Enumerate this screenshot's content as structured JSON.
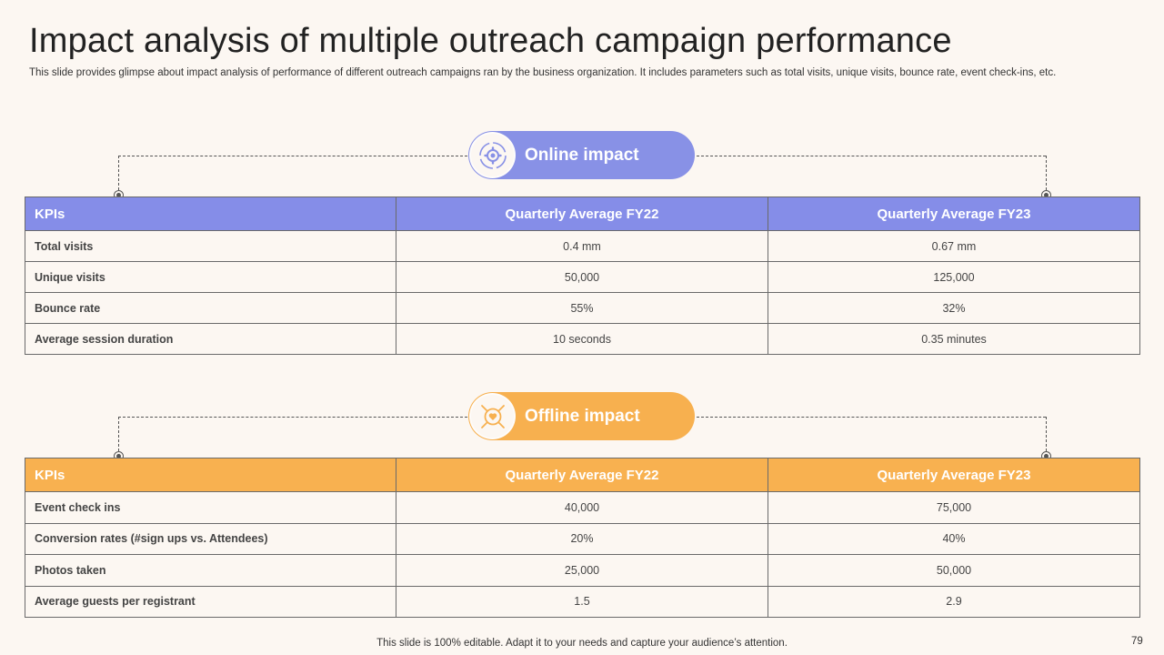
{
  "title": "Impact analysis of multiple outreach campaign performance",
  "subtitle": "This slide provides glimpse about impact analysis of performance of different outreach campaigns ran by the business organization. It includes parameters such as total visits, unique visits, bounce rate, event check-ins, etc.",
  "colors": {
    "online": "#858de8",
    "offline": "#f8b150",
    "background": "#fcf7f2"
  },
  "online": {
    "label": "Online impact",
    "icon": "gear-cycle-icon",
    "headers": [
      "KPIs",
      "Quarterly Average FY22",
      "Quarterly Average FY23"
    ],
    "rows": [
      [
        "Total visits",
        "0.4 mm",
        "0.67 mm"
      ],
      [
        "Unique visits",
        "50,000",
        "125,000"
      ],
      [
        "Bounce rate",
        "55%",
        "32%"
      ],
      [
        "Average session duration",
        "10 seconds",
        "0.35 minutes"
      ]
    ]
  },
  "offline": {
    "label": "Offline impact",
    "icon": "heart-hand-icon",
    "headers": [
      "KPIs",
      "Quarterly Average FY22",
      "Quarterly Average FY23"
    ],
    "rows": [
      [
        "Event check ins",
        "40,000",
        "75,000"
      ],
      [
        "Conversion rates (#sign ups vs. Attendees)",
        "20%",
        "40%"
      ],
      [
        "Photos taken",
        "25,000",
        "50,000"
      ],
      [
        "Average guests per registrant",
        "1.5",
        "2.9"
      ]
    ]
  },
  "footer": "This slide is 100% editable. Adapt it to your needs and capture your audience’s attention.",
  "page_number": "79"
}
